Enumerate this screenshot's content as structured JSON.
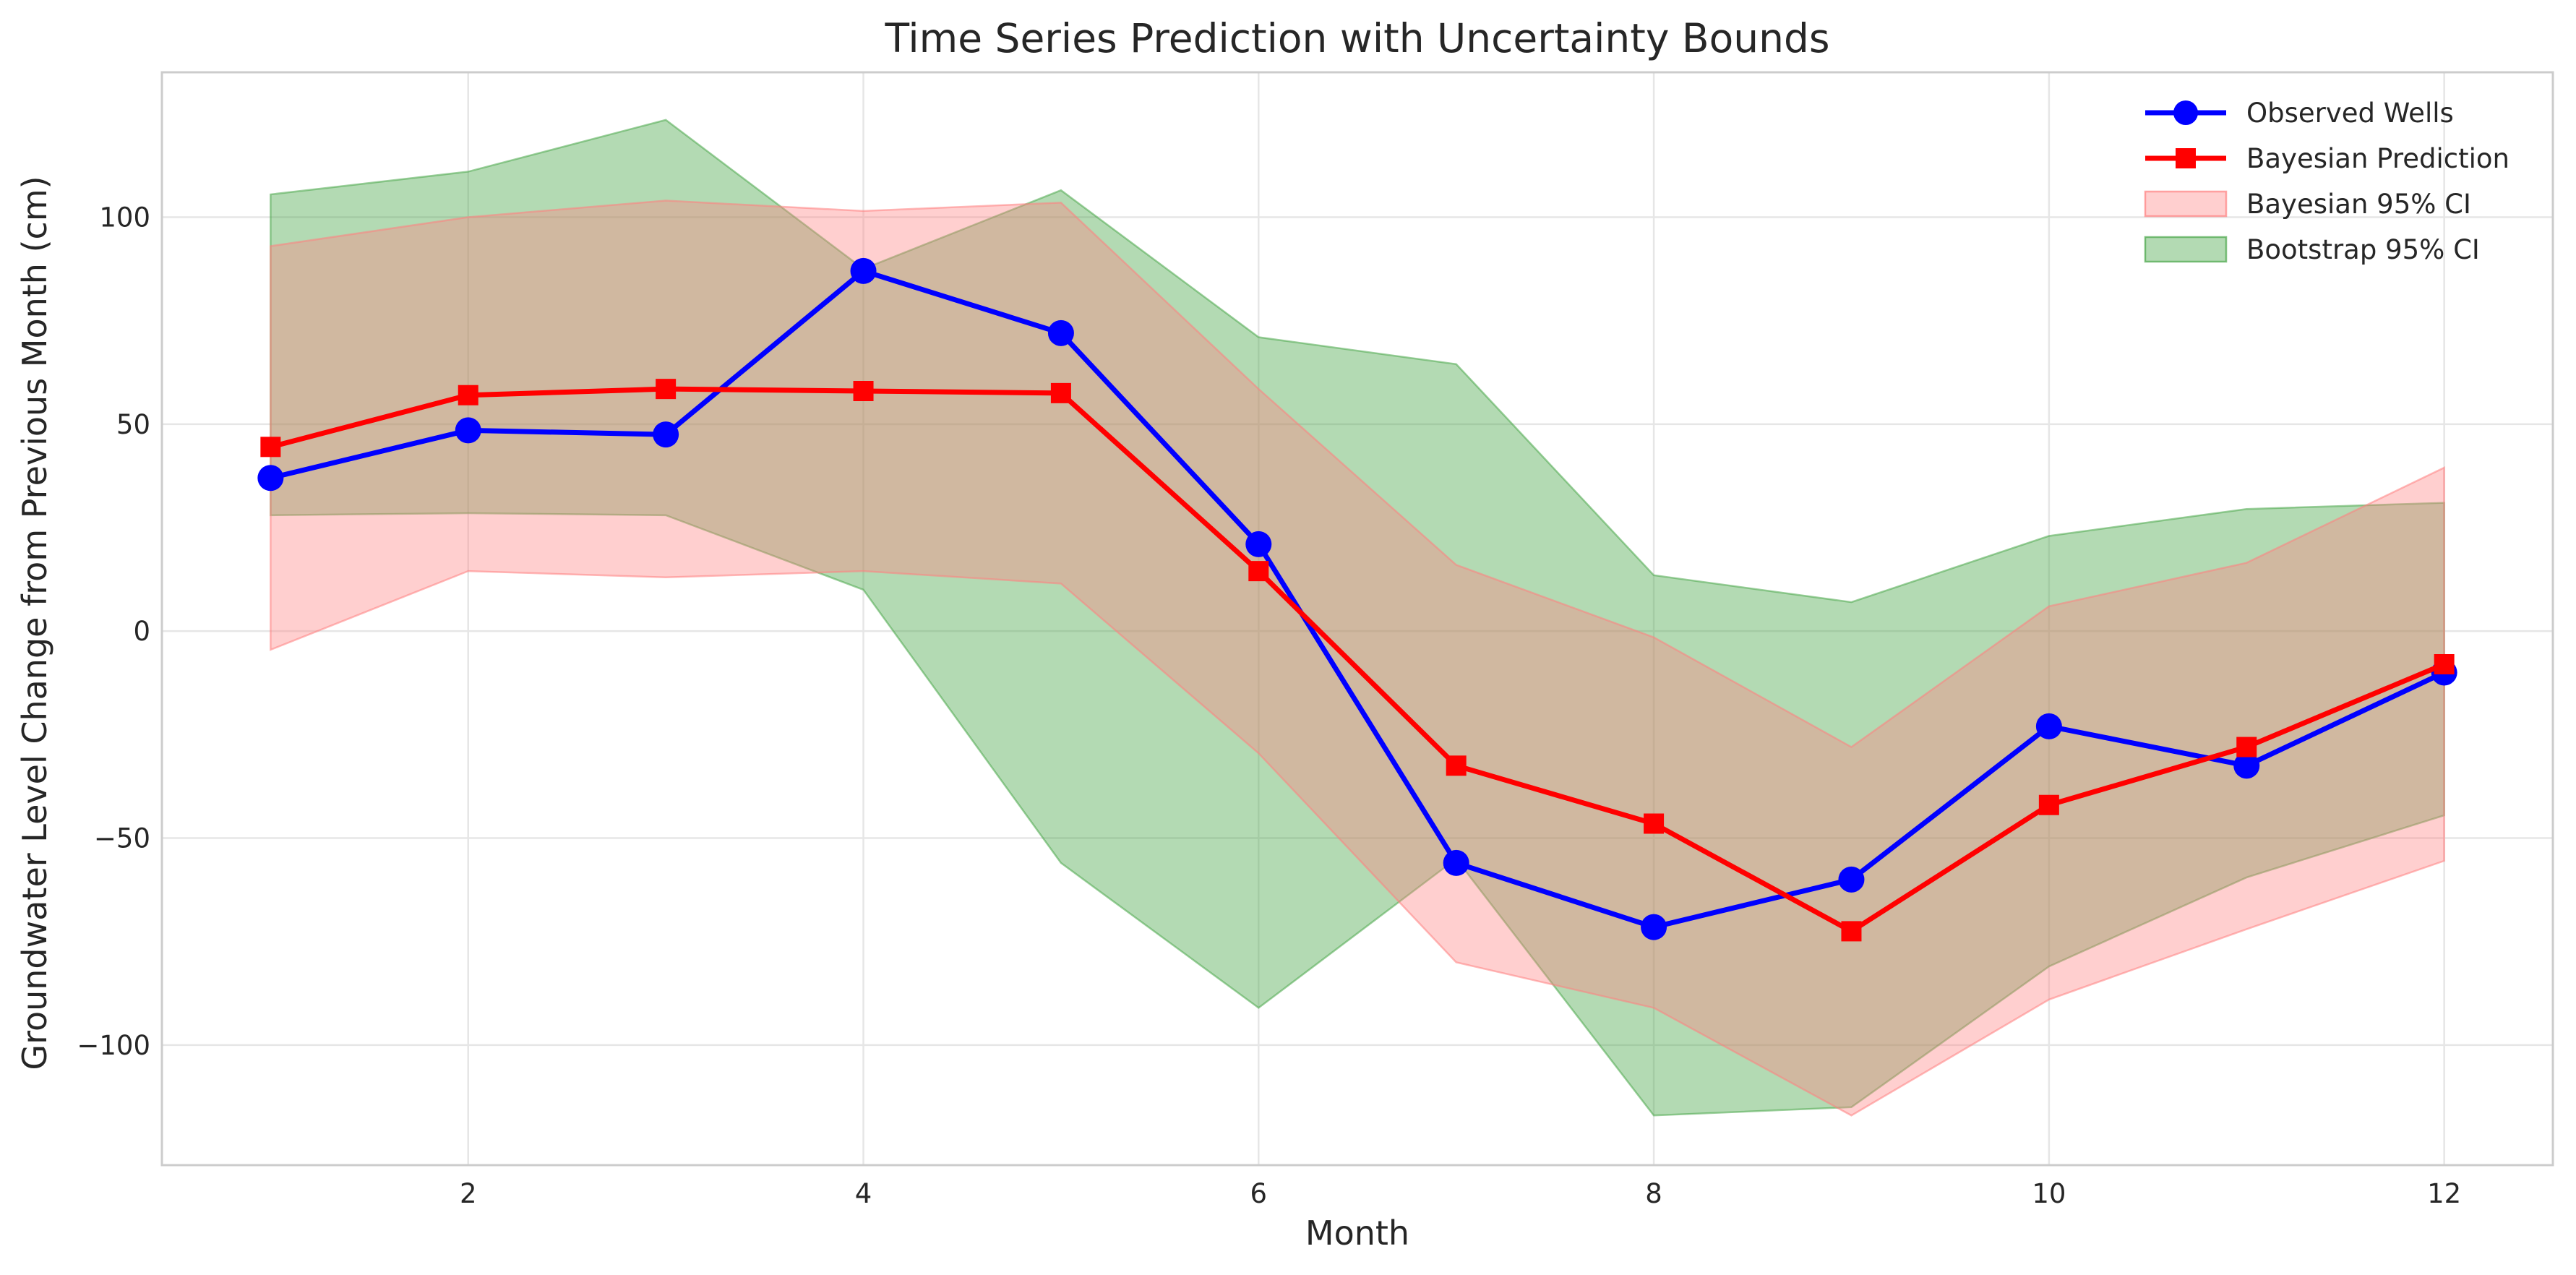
{
  "chart_data": {
    "type": "line",
    "title": "Time Series Prediction with Uncertainty Bounds",
    "xlabel": "Month",
    "ylabel": "Groundwater Level Change from Previous Month (cm)",
    "xlim": [
      0.45,
      12.55
    ],
    "ylim": [
      -129,
      135
    ],
    "xticks": [
      2,
      4,
      6,
      8,
      10,
      12
    ],
    "yticks": [
      -100,
      -50,
      0,
      50,
      100
    ],
    "ytick_labels": [
      "−100",
      "−50",
      "0",
      "50",
      "100"
    ],
    "grid": true,
    "legend_position": "top-right",
    "x": [
      1,
      2,
      3,
      4,
      5,
      6,
      7,
      8,
      9,
      10,
      11,
      12
    ],
    "series": [
      {
        "name": "Observed Wells",
        "kind": "line",
        "marker": "circle",
        "color": "#0000ff",
        "values": [
          37,
          48.5,
          47.5,
          87,
          72,
          21,
          -56,
          -71.5,
          -60,
          -23,
          -32.5,
          -10
        ]
      },
      {
        "name": "Bayesian Prediction",
        "kind": "line",
        "marker": "square",
        "color": "#ff0000",
        "values": [
          44.5,
          57,
          58.5,
          58,
          57.5,
          14.5,
          -32.5,
          -46.5,
          -72.5,
          -42,
          -28,
          -8
        ]
      }
    ],
    "bands": [
      {
        "name": "Bootstrap 95% CI",
        "color": "#4aa74a",
        "lower": [
          28,
          28.5,
          28,
          10,
          -56,
          -91,
          -55,
          -117,
          -115,
          -81,
          -59.5,
          -44.5
        ],
        "upper": [
          105.5,
          111,
          123.5,
          87.5,
          106.5,
          71,
          64.5,
          13.5,
          7,
          23,
          29.5,
          31
        ]
      },
      {
        "name": "Bayesian 95% CI",
        "color": "#ff8080",
        "lower": [
          -4.5,
          14.5,
          13,
          14.5,
          11.5,
          -29.5,
          -80,
          -91,
          -117,
          -89,
          -72,
          -55.5
        ],
        "upper": [
          93,
          100,
          104,
          101.5,
          103.5,
          58.5,
          16,
          -1.5,
          -28,
          6,
          16.5,
          39.5
        ]
      }
    ],
    "legend_order": [
      "Observed Wells",
      "Bayesian Prediction",
      "Bayesian 95% CI",
      "Bootstrap 95% CI"
    ]
  }
}
